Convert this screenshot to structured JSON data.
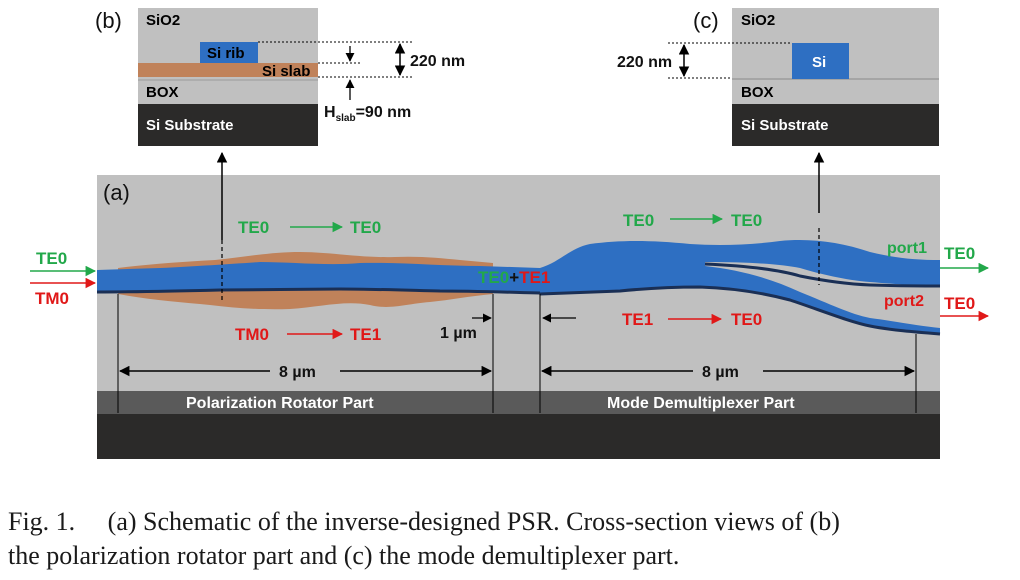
{
  "panel_b": {
    "tag": "(b)",
    "sio2": "SiO2",
    "si_rib": "Si rib",
    "si_slab": "Si slab",
    "box": "BOX",
    "substrate": "Si Substrate",
    "height": "220 nm",
    "h_slab_main": "H",
    "h_slab_sub": "slab",
    "h_slab_value": "=90 nm"
  },
  "panel_c": {
    "tag": "(c)",
    "sio2": "SiO2",
    "si": "Si",
    "box": "BOX",
    "substrate": "Si Substrate",
    "height": "220 nm"
  },
  "panel_a": {
    "tag": "(a)",
    "input_te": "TE0",
    "input_tm": "TM0",
    "rot_te_from": "TE0",
    "rot_te_to": "TE0",
    "rot_tm_from": "TM0",
    "rot_tm_to": "TE1",
    "mid_te": "TE0",
    "mid_plus": "+",
    "mid_te1": "TE1",
    "gap": "1 µm",
    "demux_te_from": "TE0",
    "demux_te_to": "TE0",
    "demux_te1_from": "TE1",
    "demux_te1_to": "TE0",
    "port1": "port1",
    "port1_mode": "TE0",
    "port2": "port2",
    "port2_mode": "TE0",
    "length_left": "8 µm",
    "length_right": "8 µm",
    "part_left": "Polarization Rotator Part",
    "part_right": "Mode Demultiplexer Part"
  },
  "colors": {
    "oxide": "#c0c0c0",
    "silicon": "#2e6fc2",
    "slab": "#c0825a",
    "substrate": "#2b2a29",
    "band": "#5a5a5a",
    "te_green": "#22a84a",
    "tm_red": "#e01818"
  },
  "caption": {
    "line1": "Fig. 1.     (a) Schematic of the inverse-designed PSR. Cross-section views of (b)",
    "line2": "the polarization rotator part and (c) the mode demultiplexer part."
  }
}
